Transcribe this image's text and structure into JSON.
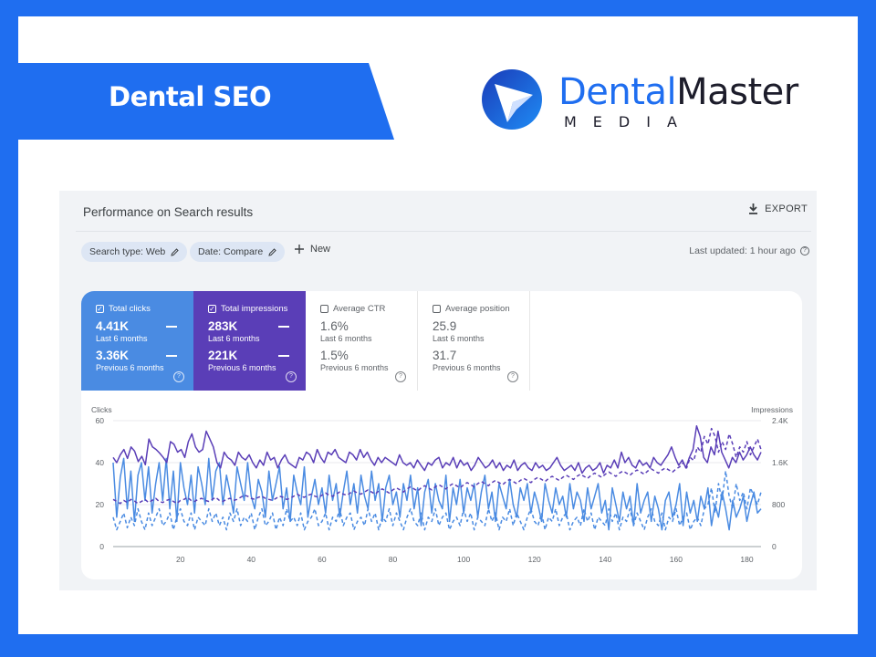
{
  "banner": {
    "title": "Dental SEO"
  },
  "logo": {
    "word_a": "Dental",
    "word_b": "Master",
    "sub": "MEDIA"
  },
  "panel": {
    "title": "Performance on Search results",
    "export_label": "EXPORT",
    "filters": [
      {
        "label": "Search type: Web"
      },
      {
        "label": "Date: Compare"
      }
    ],
    "new_label": "New",
    "last_updated": "Last updated: 1 hour ago"
  },
  "metrics": {
    "clicks": {
      "label": "Total clicks",
      "value": "4.41K",
      "period": "Last 6 months",
      "value_prev": "3.36K",
      "period_prev": "Previous 6 months",
      "checked": true
    },
    "impressions": {
      "label": "Total impressions",
      "value": "283K",
      "period": "Last 6 months",
      "value_prev": "221K",
      "period_prev": "Previous 6 months",
      "checked": true
    },
    "ctr": {
      "label": "Average CTR",
      "value": "1.6%",
      "period": "Last 6 months",
      "value_prev": "1.5%",
      "period_prev": "Previous 6 months",
      "checked": false
    },
    "position": {
      "label": "Average position",
      "value": "25.9",
      "period": "Last 6 months",
      "value_prev": "31.7",
      "period_prev": "Previous 6 months",
      "checked": false
    }
  },
  "colors": {
    "brand_blue": "#1f6ef0",
    "clicks": "#4a8be2",
    "impressions": "#5a3eb7"
  },
  "chart_data": {
    "type": "line",
    "ylabel_left": "Clicks",
    "ylabel_right": "Impressions",
    "y_left_ticks": [
      "0",
      "20",
      "40",
      "60"
    ],
    "y_right_ticks": [
      "0",
      "800",
      "1.6K",
      "2.4K"
    ],
    "x_ticks": [
      "20",
      "40",
      "60",
      "80",
      "100",
      "120",
      "140",
      "160",
      "180"
    ],
    "ylim_left": [
      0,
      60
    ],
    "ylim_right": [
      0,
      2400
    ],
    "xlim": [
      1,
      184
    ],
    "series": [
      {
        "name": "Total clicks",
        "style": "solid",
        "axis": "left",
        "color": "#4a8be2",
        "values": [
          40,
          14,
          33,
          42,
          18,
          36,
          12,
          34,
          40,
          22,
          38,
          16,
          30,
          40,
          22,
          42,
          18,
          36,
          12,
          40,
          28,
          20,
          34,
          16,
          38,
          30,
          20,
          42,
          22,
          36,
          40,
          20,
          34,
          26,
          16,
          38,
          30,
          22,
          40,
          24,
          18,
          32,
          26,
          14,
          36,
          22,
          30,
          38,
          18,
          28,
          12,
          34,
          26,
          20,
          38,
          14,
          24,
          32,
          20,
          28,
          16,
          34,
          22,
          30,
          14,
          26,
          36,
          20,
          30,
          16,
          34,
          24,
          18,
          36,
          22,
          30,
          12,
          28,
          34,
          20,
          26,
          14,
          30,
          22,
          34,
          18,
          28,
          10,
          26,
          32,
          16,
          30,
          22,
          18,
          34,
          12,
          28,
          20,
          32,
          16,
          28,
          22,
          30,
          14,
          26,
          34,
          18,
          26,
          12,
          30,
          24,
          18,
          32,
          20,
          14,
          28,
          22,
          30,
          16,
          26,
          20,
          12,
          30,
          22,
          16,
          28,
          20,
          24,
          14,
          30,
          18,
          26,
          22,
          12,
          28,
          18,
          24,
          30,
          16,
          22,
          8,
          28,
          20,
          12,
          26,
          18,
          24,
          10,
          30,
          16,
          22,
          26,
          12,
          24,
          18,
          8,
          22,
          26,
          14,
          20,
          30,
          10,
          26,
          16,
          22,
          12,
          24,
          18,
          28,
          10,
          20,
          14,
          26,
          18,
          8,
          22,
          14,
          18,
          24,
          12,
          20,
          26,
          16,
          18
        ]
      },
      {
        "name": "Total impressions",
        "style": "solid",
        "axis": "right",
        "color": "#5a3eb7",
        "values": [
          1700,
          1600,
          1750,
          1850,
          1680,
          1900,
          1820,
          1620,
          1720,
          1560,
          2050,
          1900,
          1850,
          1780,
          1700,
          1600,
          2000,
          1950,
          1800,
          1850,
          1700,
          2000,
          2150,
          1900,
          1800,
          1850,
          2200,
          2050,
          1900,
          1600,
          1500,
          1800,
          1700,
          1650,
          1550,
          1800,
          1700,
          1650,
          1750,
          1600,
          1500,
          1650,
          1550,
          1800,
          1650,
          1700,
          1500,
          1650,
          1750,
          1600,
          1550,
          1500,
          1700,
          1650,
          1800,
          1750,
          1600,
          1850,
          1700,
          1600,
          1800,
          1750,
          1850,
          1700,
          1650,
          1600,
          1800,
          1750,
          1650,
          1850,
          1700,
          1800,
          1650,
          1550,
          1700,
          1600,
          1700,
          1650,
          1600,
          1550,
          1750,
          1600,
          1550,
          1600,
          1500,
          1650,
          1550,
          1450,
          1600,
          1550,
          1650,
          1700,
          1500,
          1600,
          1550,
          1700,
          1500,
          1650,
          1550,
          1600,
          1450,
          1550,
          1700,
          1600,
          1500,
          1550,
          1650,
          1500,
          1600,
          1450,
          1550,
          1500,
          1650,
          1450,
          1550,
          1600,
          1500,
          1450,
          1600,
          1500,
          1550,
          1450,
          1500,
          1600,
          1700,
          1550,
          1450,
          1500,
          1550,
          1450,
          1600,
          1400,
          1500,
          1550,
          1450,
          1500,
          1600,
          1400,
          1550,
          1500,
          1650,
          1500,
          1800,
          1600,
          1700,
          1550,
          1500,
          1650,
          1550,
          1600,
          1500,
          1700,
          1600,
          1550,
          1650,
          1750,
          1900,
          1700,
          1550,
          1650,
          1500,
          1700,
          1850,
          2300,
          2100,
          1700,
          1600,
          1900,
          1750,
          2200,
          1800,
          1650,
          1500,
          1700,
          1600,
          1800,
          1650,
          1750,
          1900,
          1750,
          1650,
          1800
        ]
      },
      {
        "name": "Total clicks (previous)",
        "style": "dashed",
        "axis": "left",
        "color": "#4a8be2",
        "values": [
          14,
          8,
          12,
          16,
          9,
          14,
          10,
          18,
          12,
          8,
          16,
          10,
          14,
          18,
          10,
          12,
          16,
          8,
          14,
          18,
          12,
          10,
          16,
          8,
          14,
          12,
          10,
          18,
          12,
          16,
          10,
          14,
          8,
          16,
          12,
          18,
          10,
          14,
          12,
          16,
          8,
          14,
          18,
          10,
          12,
          16,
          8,
          14,
          10,
          18,
          12,
          14,
          10,
          16,
          8,
          12,
          14,
          18,
          10,
          12,
          16,
          8,
          14,
          12,
          18,
          10,
          14,
          16,
          8,
          12,
          14,
          10,
          18,
          12,
          16,
          8,
          14,
          12,
          18,
          10,
          16,
          12,
          8,
          14,
          18,
          12,
          10,
          16,
          8,
          14,
          12,
          18,
          10,
          14,
          16,
          8,
          12,
          14,
          10,
          18,
          12,
          16,
          8,
          14,
          12,
          10,
          18,
          12,
          16,
          8,
          14,
          12,
          18,
          10,
          16,
          12,
          8,
          14,
          18,
          12,
          10,
          16,
          8,
          14,
          12,
          18,
          10,
          14,
          16,
          8,
          12,
          14,
          10,
          18,
          12,
          16,
          8,
          14,
          12,
          10,
          18,
          12,
          16,
          8,
          14,
          12,
          18,
          10,
          16,
          12,
          8,
          14,
          18,
          12,
          10,
          16,
          8,
          14,
          12,
          18,
          10,
          14,
          16,
          8,
          12,
          14,
          10,
          18,
          20,
          28,
          16,
          30,
          22,
          36,
          24,
          18,
          30,
          22,
          26,
          18,
          28,
          24,
          20,
          26
        ]
      },
      {
        "name": "Total impressions (previous)",
        "style": "dashed",
        "axis": "right",
        "color": "#5a3eb7",
        "values": [
          900,
          860,
          820,
          880,
          840,
          900,
          870,
          820,
          860,
          900,
          840,
          880,
          920,
          860,
          840,
          880,
          900,
          860,
          820,
          880,
          900,
          940,
          880,
          860,
          900,
          920,
          880,
          860,
          900,
          940,
          880,
          860,
          900,
          920,
          880,
          900,
          940,
          980,
          960,
          920,
          900,
          940,
          960,
          920,
          900,
          880,
          920,
          960,
          940,
          900,
          920,
          960,
          1000,
          960,
          940,
          980,
          1000,
          960,
          940,
          980,
          1020,
          980,
          960,
          1000,
          1040,
          1000,
          980,
          1020,
          1060,
          1020,
          1000,
          1040,
          1080,
          1040,
          1000,
          1060,
          1100,
          1060,
          1020,
          1080,
          1120,
          1080,
          1040,
          1100,
          1140,
          1100,
          1060,
          1120,
          1160,
          1120,
          1080,
          1140,
          1180,
          1140,
          1100,
          1160,
          1200,
          1160,
          1120,
          1180,
          1220,
          1180,
          1140,
          1200,
          1240,
          1200,
          1160,
          1220,
          1260,
          1220,
          1180,
          1240,
          1280,
          1240,
          1200,
          1260,
          1300,
          1260,
          1220,
          1280,
          1320,
          1280,
          1240,
          1300,
          1340,
          1300,
          1260,
          1320,
          1360,
          1320,
          1280,
          1340,
          1380,
          1340,
          1300,
          1360,
          1400,
          1360,
          1320,
          1380,
          1420,
          1380,
          1340,
          1400,
          1440,
          1400,
          1360,
          1420,
          1460,
          1420,
          1380,
          1440,
          1480,
          1440,
          1400,
          1460,
          1500,
          1460,
          1420,
          1480,
          1520,
          1600,
          1500,
          1700,
          1640,
          1900,
          1800,
          2100,
          1950,
          2250,
          2100,
          1800,
          2000,
          1850,
          2150,
          1950,
          1700,
          1900,
          1800,
          2000,
          1750,
          1900,
          2050,
          1850
        ]
      }
    ]
  }
}
